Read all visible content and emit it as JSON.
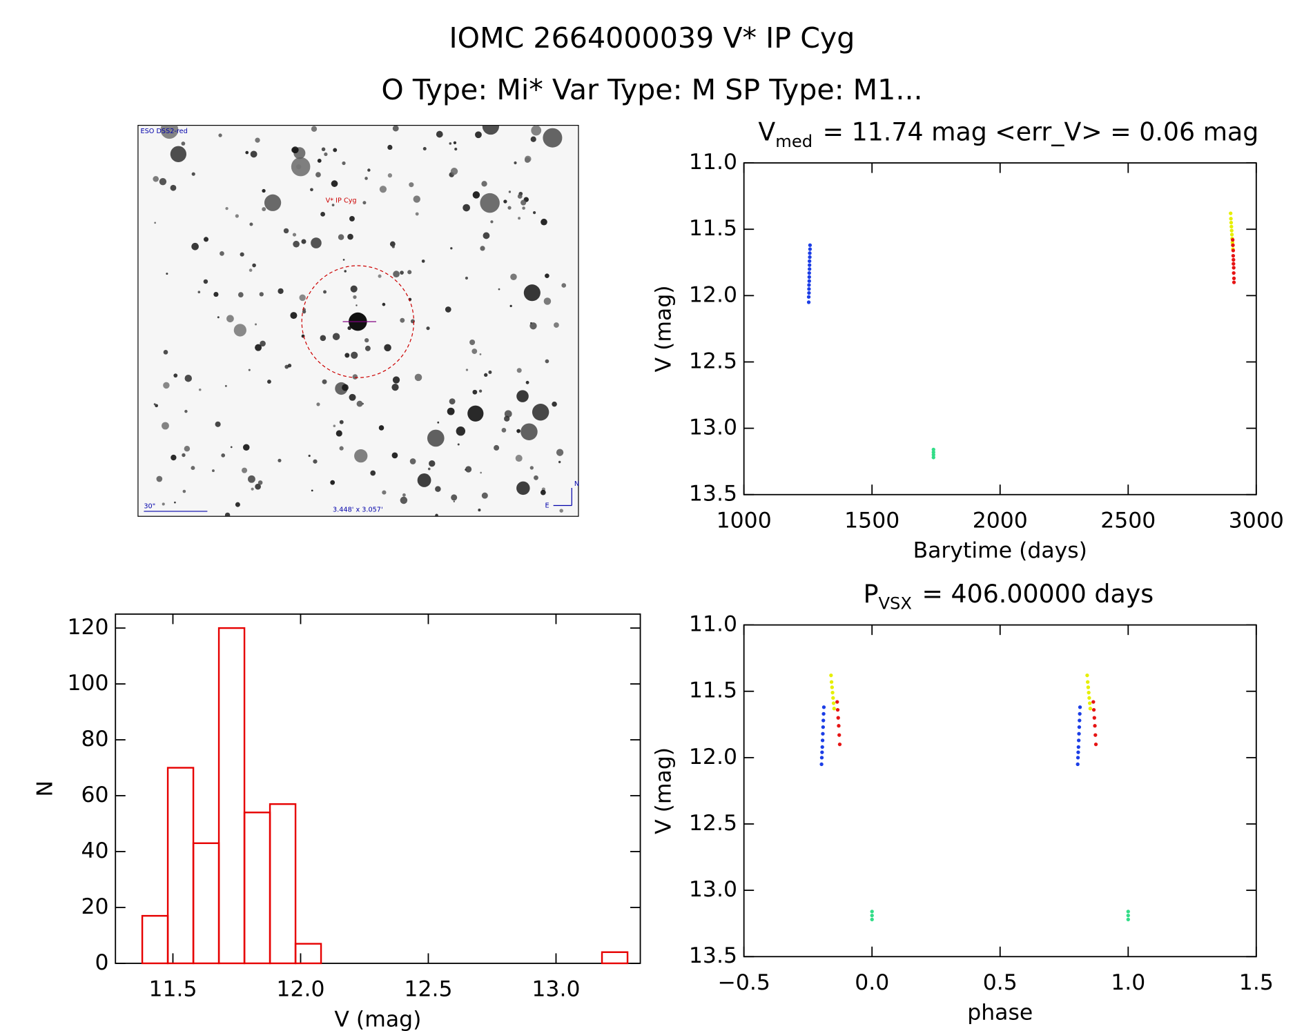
{
  "header": {
    "title": "IOMC 2664000039   V* IP Cyg",
    "subtitle": "O Type: Mi*  Var Type: M  SP Type: M1..."
  },
  "image": {
    "survey": "ESO DSS2-red",
    "target": "V* IP Cyg",
    "scale": "30\"",
    "fov": "3.448' x 3.057'",
    "north": "N",
    "east": "E"
  },
  "chart_data": [
    {
      "type": "scatter",
      "title": "V",
      "title_sub": "med",
      "title_rest": "= 11.74 mag <err_V> = 0.06 mag",
      "xlabel": "Barytime (days)",
      "ylabel": "V (mag)",
      "xlim": [
        1000,
        3000
      ],
      "ylim": [
        11.0,
        13.5
      ],
      "y_inverted": true,
      "xticks": [
        1000,
        1500,
        2000,
        2500,
        3000
      ],
      "yticks": [
        {
          "value": 11.0,
          "label": "11.0"
        },
        11.5,
        {
          "value": 12.0,
          "label": "12.0"
        },
        12.5,
        {
          "value": 13.0,
          "label": "13.0"
        },
        13.5
      ],
      "series": [
        {
          "color": "#1c3ee6",
          "x": [
            1258,
            1258,
            1257,
            1257,
            1256,
            1256,
            1256,
            1255,
            1255,
            1255,
            1254,
            1254,
            1254,
            1253,
            1253
          ],
          "values": [
            11.62,
            11.65,
            11.68,
            11.71,
            11.74,
            11.77,
            11.8,
            11.83,
            11.86,
            11.89,
            11.92,
            11.95,
            11.98,
            12.01,
            12.05
          ]
        },
        {
          "color": "#33dd88",
          "x": [
            1740,
            1740,
            1740,
            1740
          ],
          "values": [
            13.16,
            13.18,
            13.2,
            13.22
          ]
        },
        {
          "color": "#e6ef00",
          "x": [
            2900,
            2901,
            2902,
            2903,
            2904,
            2905,
            2906,
            2907,
            2908,
            2909
          ],
          "values": [
            11.38,
            11.42,
            11.45,
            11.48,
            11.51,
            11.54,
            11.57,
            11.6,
            11.62,
            11.65
          ]
        },
        {
          "color": "#e61414",
          "x": [
            2908,
            2909,
            2910,
            2910,
            2911,
            2911,
            2912,
            2912,
            2913,
            2913
          ],
          "values": [
            11.58,
            11.62,
            11.66,
            11.7,
            11.73,
            11.76,
            11.79,
            11.83,
            11.87,
            11.9
          ]
        }
      ]
    },
    {
      "type": "scatter",
      "title": "P",
      "title_sub": "VSX",
      "title_rest": "= 406.00000 days",
      "xlabel": "phase",
      "ylabel": "V (mag)",
      "xlim": [
        -0.5,
        1.5
      ],
      "ylim": [
        11.0,
        13.5
      ],
      "y_inverted": true,
      "xticks": [
        {
          "value": -0.5,
          "label": "−0.5"
        },
        {
          "value": 0.0,
          "label": "0.0"
        },
        0.5,
        {
          "value": 1.0,
          "label": "1.0"
        },
        1.5
      ],
      "yticks": [
        {
          "value": 11.0,
          "label": "11.0"
        },
        11.5,
        {
          "value": 12.0,
          "label": "12.0"
        },
        12.5,
        {
          "value": 13.0,
          "label": "13.0"
        },
        13.5
      ],
      "series": [
        {
          "color": "#1c3ee6",
          "x": [
            -0.188,
            -0.189,
            -0.19,
            -0.191,
            -0.192,
            -0.193,
            -0.194,
            -0.195,
            -0.196,
            -0.197,
            0.812,
            0.811,
            0.81,
            0.809,
            0.808,
            0.807,
            0.806,
            0.805,
            0.804,
            0.803
          ],
          "values": [
            11.62,
            11.67,
            11.72,
            11.77,
            11.82,
            11.87,
            11.92,
            11.96,
            12.0,
            12.05,
            11.62,
            11.67,
            11.72,
            11.77,
            11.82,
            11.87,
            11.92,
            11.96,
            12.0,
            12.05
          ]
        },
        {
          "color": "#33dd88",
          "x": [
            0.0,
            0.0,
            0.0,
            1.0,
            1.0,
            1.0
          ],
          "values": [
            13.16,
            13.19,
            13.22,
            13.16,
            13.19,
            13.22
          ]
        },
        {
          "color": "#e6ef00",
          "x": [
            -0.16,
            -0.158,
            -0.156,
            -0.154,
            -0.152,
            -0.15,
            -0.148,
            0.84,
            0.842,
            0.844,
            0.846,
            0.848,
            0.85,
            0.852
          ],
          "values": [
            11.38,
            11.43,
            11.47,
            11.51,
            11.55,
            11.59,
            11.63,
            11.38,
            11.43,
            11.47,
            11.51,
            11.55,
            11.59,
            11.63
          ]
        },
        {
          "color": "#e61414",
          "x": [
            -0.136,
            -0.134,
            -0.132,
            -0.13,
            -0.128,
            -0.126,
            0.864,
            0.866,
            0.868,
            0.87,
            0.872,
            0.874
          ],
          "values": [
            11.58,
            11.64,
            11.7,
            11.76,
            11.83,
            11.9,
            11.58,
            11.64,
            11.7,
            11.76,
            11.83,
            11.9
          ]
        }
      ]
    },
    {
      "type": "histogram",
      "xlabel": "V (mag)",
      "ylabel": "N",
      "color": "#e60000",
      "xlim": [
        11.275,
        13.33
      ],
      "ylim": [
        0,
        125
      ],
      "xticks": [
        11.5,
        {
          "value": 12.0,
          "label": "12.0"
        },
        12.5,
        {
          "value": 13.0,
          "label": "13.0"
        }
      ],
      "yticks": [
        0,
        20,
        40,
        60,
        80,
        100,
        120
      ],
      "bins": [
        11.38,
        11.48,
        11.58,
        11.68,
        11.78,
        11.88,
        11.98,
        12.08,
        12.18,
        12.28,
        12.38,
        12.48,
        12.58,
        12.68,
        12.78,
        12.88,
        12.98,
        13.08,
        13.18,
        13.28
      ],
      "values": [
        17,
        70,
        43,
        120,
        54,
        57,
        7,
        0,
        0,
        0,
        0,
        0,
        0,
        0,
        0,
        0,
        0,
        0,
        4
      ]
    }
  ]
}
